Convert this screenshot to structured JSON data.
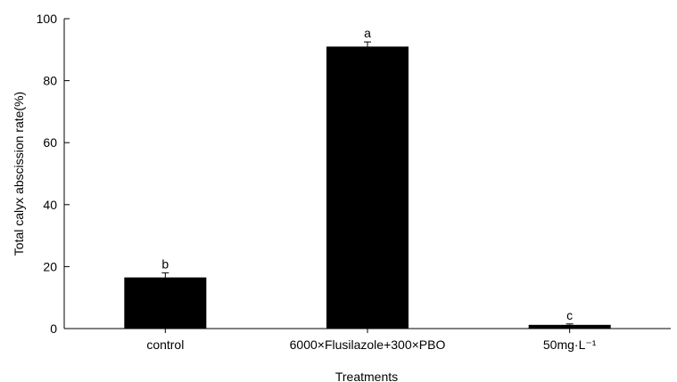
{
  "chart_data": {
    "type": "bar",
    "title": "",
    "xlabel": "Treatments",
    "ylabel": "Total calyx abscission rate(%)",
    "ylim": [
      0,
      100
    ],
    "yticks": [
      0,
      20,
      40,
      60,
      80,
      100
    ],
    "grid": false,
    "categories": [
      "control",
      "6000×Flusilazole+300×PBO",
      "50mg·L⁻¹"
    ],
    "values": [
      16.5,
      91,
      1.2
    ],
    "errors": [
      1.5,
      1.5,
      0.3
    ],
    "significance_letters": [
      "b",
      "a",
      "c"
    ],
    "bar_color": "#000000"
  }
}
